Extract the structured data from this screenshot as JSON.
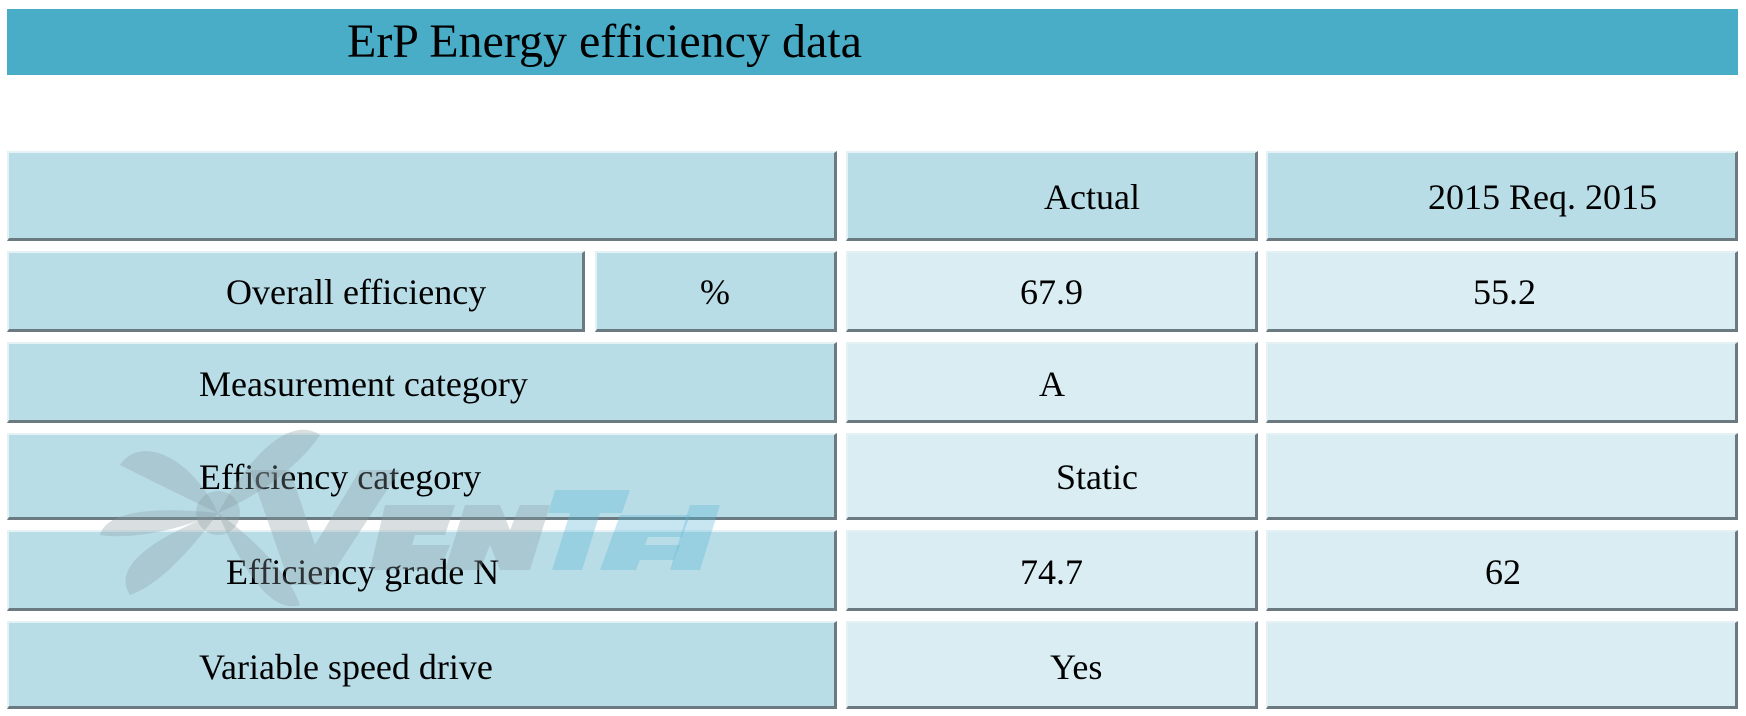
{
  "title": "ErP Energy efficiency data",
  "header": {
    "col_actual": "Actual",
    "col_req": "2015 Req. 2015"
  },
  "rows": [
    {
      "label": "Overall efficiency",
      "unit": "%",
      "actual": "67.9",
      "req": "55.2"
    },
    {
      "label": "Measurement category",
      "actual": "A",
      "req": ""
    },
    {
      "label": "Efficiency category",
      "actual": "Static",
      "req": ""
    },
    {
      "label": "Efficiency grade N",
      "actual": "74.7",
      "req": "62"
    },
    {
      "label": "Variable speed drive",
      "actual": "Yes",
      "req": ""
    }
  ],
  "watermark": {
    "brand_text": "VENTEL",
    "icon": "fan-logo-icon"
  },
  "colors": {
    "title_bar": "#4aadc8",
    "cell_dark": "#b8dde7",
    "cell_light": "#daedf3"
  }
}
